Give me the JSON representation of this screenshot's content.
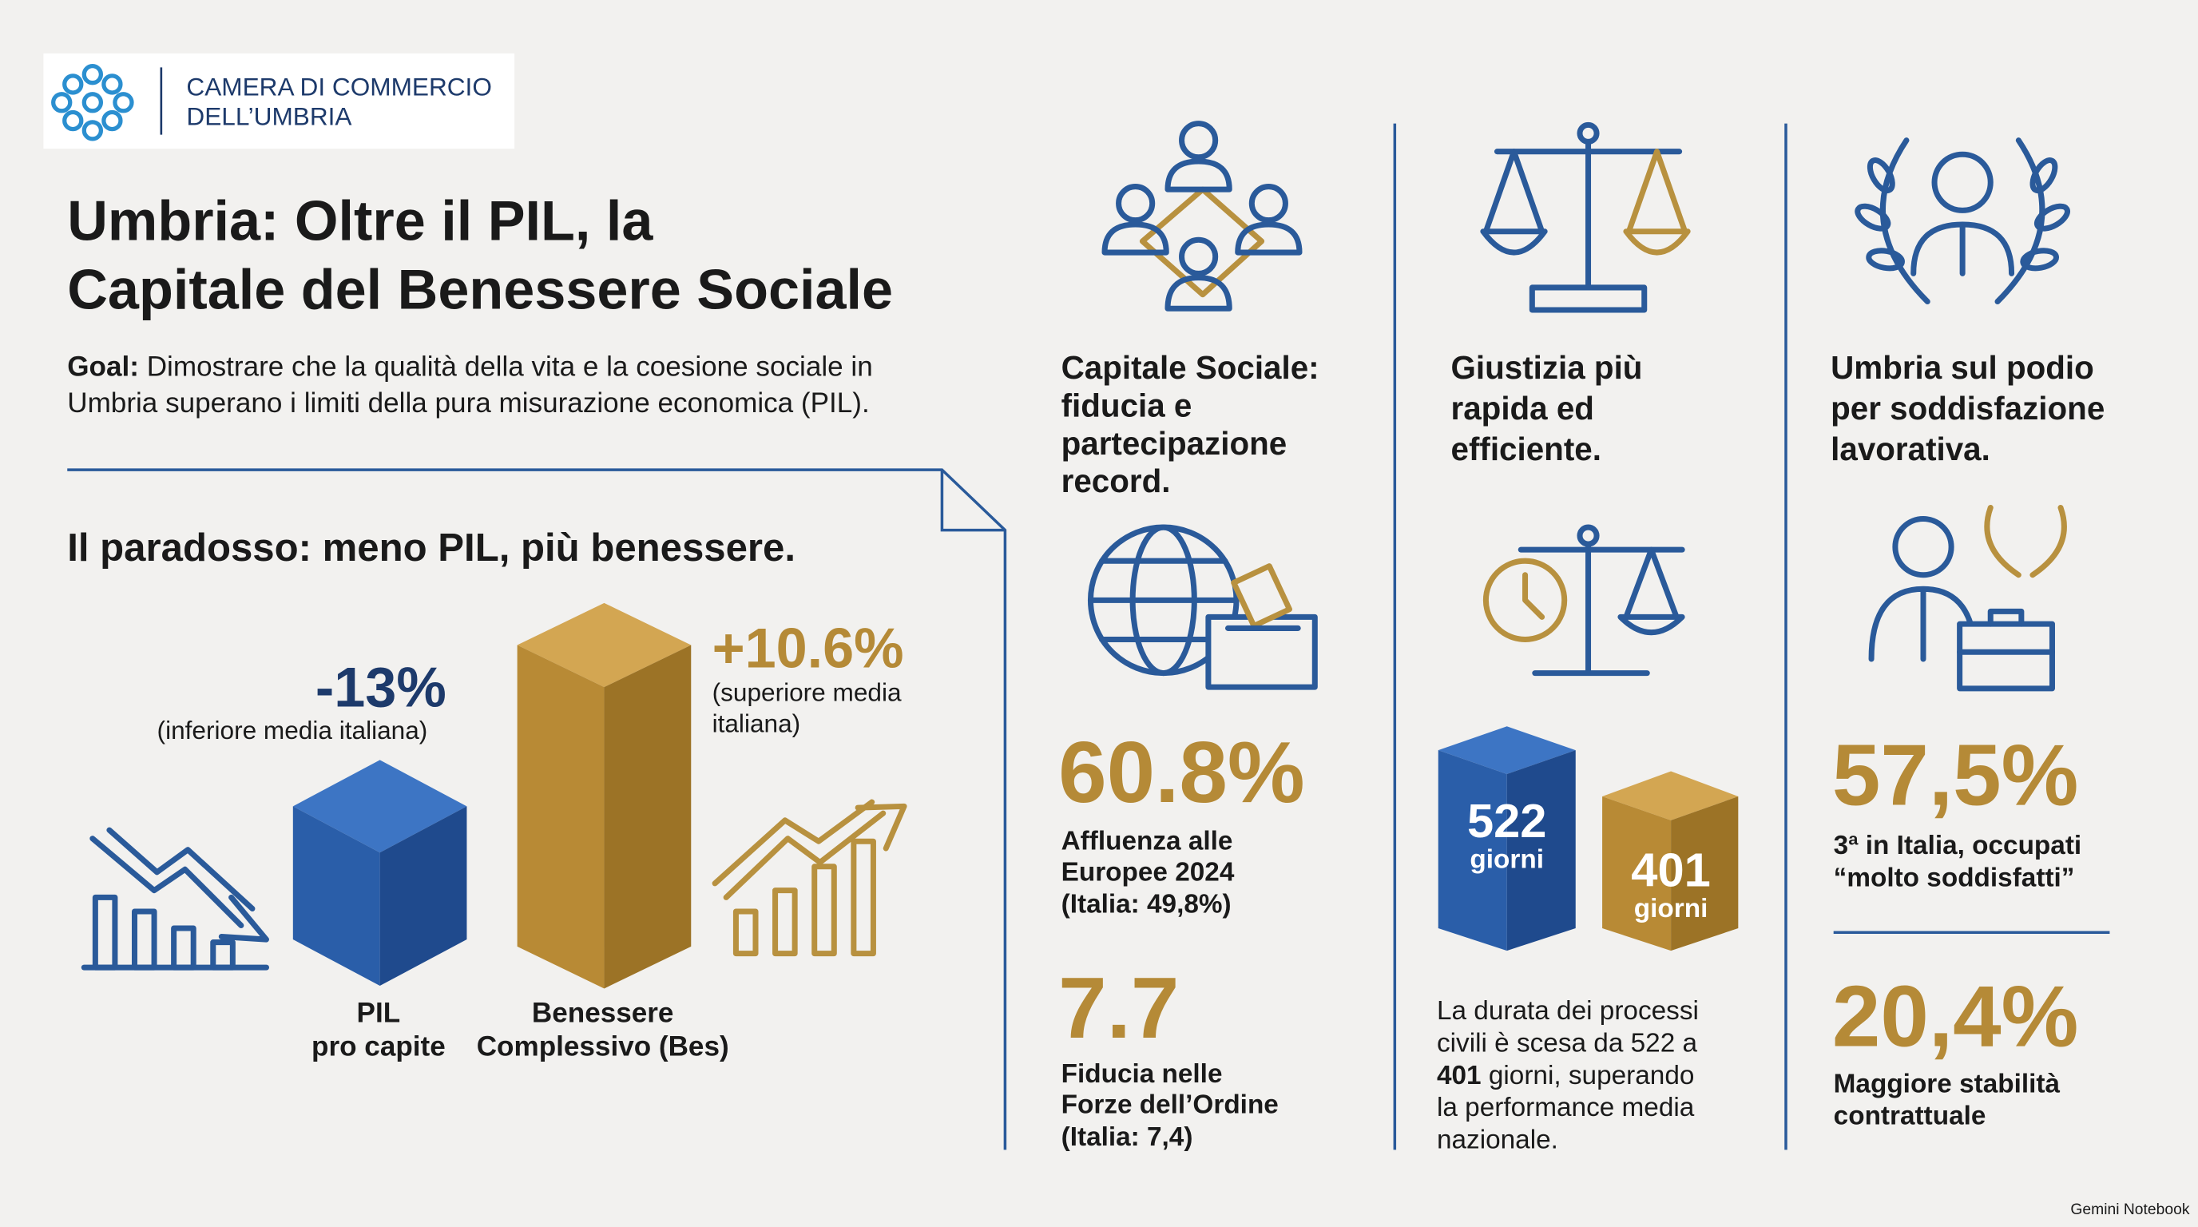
{
  "header": {
    "org_line1": "CAMERA DI COMMERCIO",
    "org_line2": "DELL’UMBRIA"
  },
  "title": [
    "Umbria: Oltre il PIL, la",
    "Capitale del Benessere Sociale"
  ],
  "goal": {
    "label": "Goal:",
    "lines": [
      "Dimostrare che la qualità della vita e la coesione sociale in",
      "Umbria superano i limiti della pura misurazione economica (PIL)."
    ]
  },
  "paradox": {
    "heading": "Il paradosso: meno PIL, più benessere.",
    "pil": {
      "value": "-13%",
      "note": [
        "(inferiore media italiana)"
      ],
      "label": [
        "PIL",
        "pro capite"
      ]
    },
    "bes": {
      "value": "+10.6%",
      "note": [
        "(superiore media",
        "italiana)"
      ],
      "label": [
        "Benessere",
        "Complessivo (Bes)"
      ]
    }
  },
  "columns": [
    {
      "heading": [
        "Capitale Sociale:",
        "fiducia e",
        "partecipazione",
        "record."
      ],
      "stats": [
        {
          "value": "60.8%",
          "caption": [
            "Affluenza alle",
            "Europee 2024",
            "(Italia: 49,8%)"
          ]
        },
        {
          "value": "7.7",
          "caption": [
            "Fiducia nelle",
            "Forze dell’Ordine",
            "(Italia: 7,4)"
          ]
        }
      ]
    },
    {
      "heading": [
        "Giustizia più",
        "rapida ed",
        "efficiente."
      ],
      "bars": [
        {
          "value": "522",
          "unit": "giorni"
        },
        {
          "value": "401",
          "unit": "giorni"
        }
      ],
      "paragraph": {
        "lines": [
          "La durata dei processi",
          "civili è scesa da 522 a"
        ],
        "bold": "401",
        "rest": [
          "giorni, superando",
          "la performance media",
          "nazionale."
        ]
      }
    },
    {
      "heading": [
        "Umbria sul podio",
        "per soddisfazione",
        "lavorativa."
      ],
      "stats": [
        {
          "value": "57,5%",
          "caption": [
            "3ª in Italia, occupati",
            "“molto soddisfatti”"
          ]
        },
        {
          "value": "20,4%",
          "caption": [
            "Maggiore stabilità",
            "contrattuale"
          ]
        }
      ]
    }
  ],
  "footer": "Gemini Notebook"
}
